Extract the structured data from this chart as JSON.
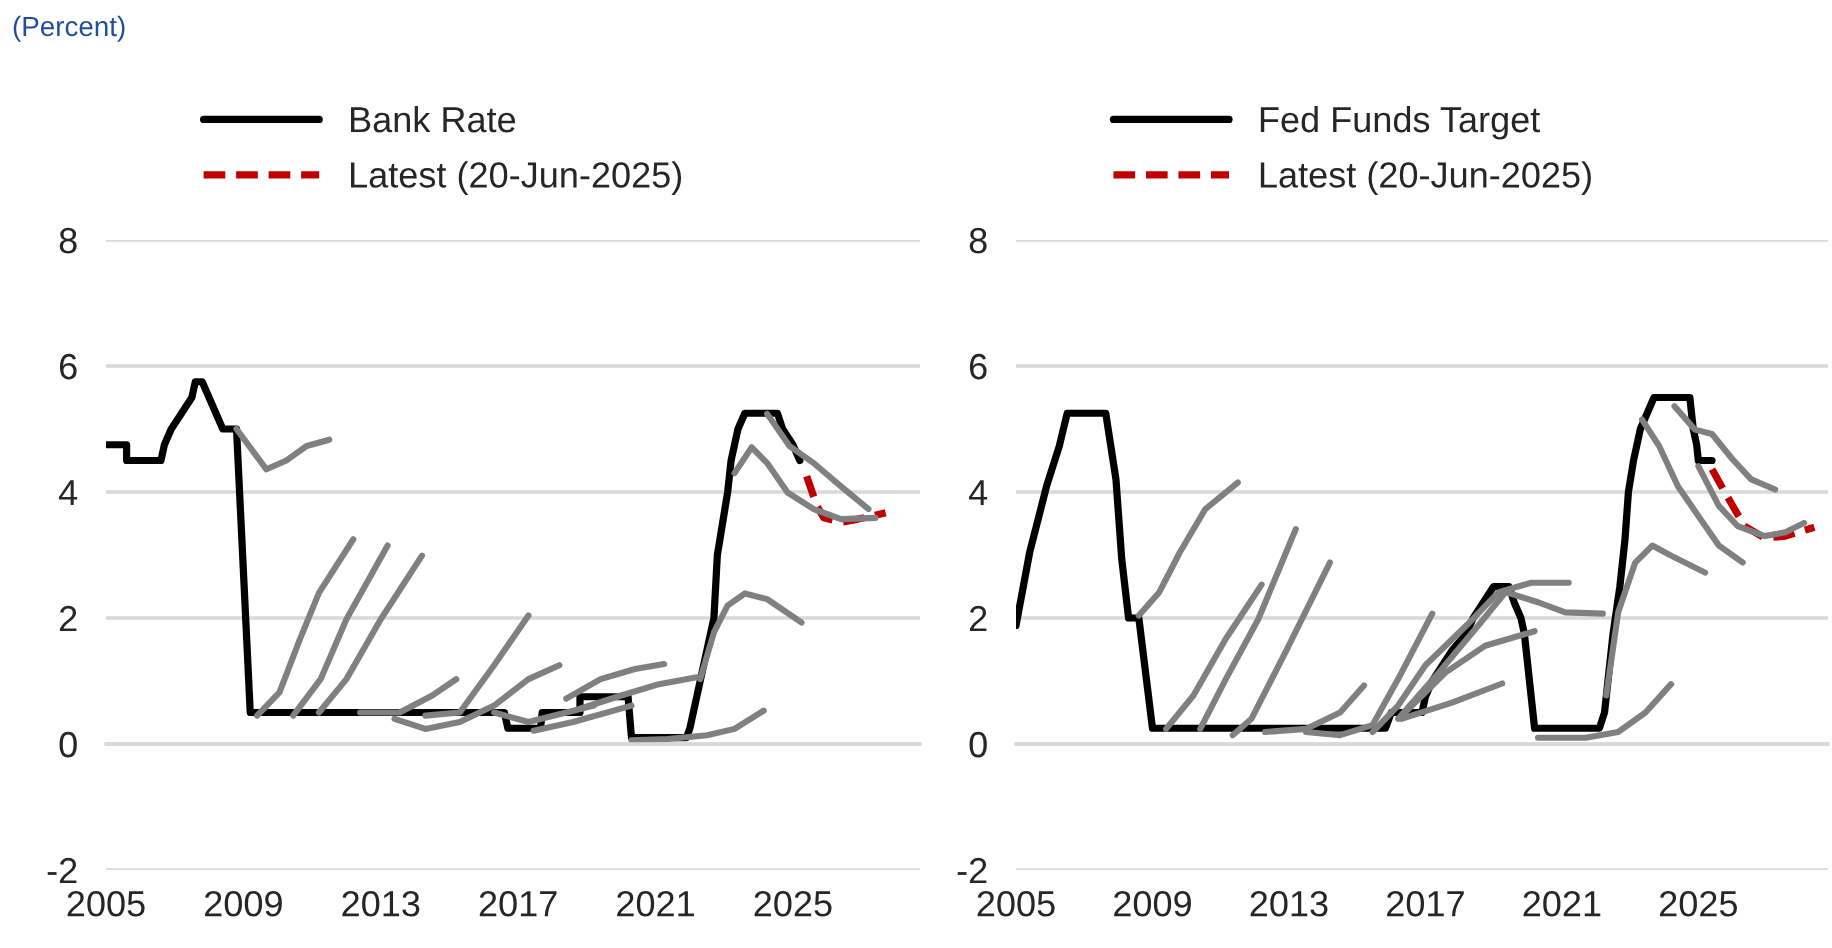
{
  "chart_data": [
    {
      "type": "line",
      "annotations": [
        "(Percent)"
      ],
      "xlim": [
        2005,
        2028.7
      ],
      "xticks": [
        2005,
        2009,
        2013,
        2017,
        2021,
        2025
      ],
      "ylim": [
        -2,
        8
      ],
      "yticks": [
        -2,
        0,
        2,
        4,
        6,
        8
      ],
      "grid": "y",
      "legend": "top",
      "series": [
        {
          "name": "Bank Rate",
          "color": "#000000",
          "line_style": "solid",
          "x": [
            2005.0,
            2005.6,
            2005.6,
            2006.6,
            2006.7,
            2006.9,
            2007.2,
            2007.5,
            2007.6,
            2007.8,
            2008.4,
            2008.8,
            2009.2,
            2016.6,
            2016.7,
            2017.65,
            2017.7,
            2018.8,
            2018.8,
            2020.2,
            2020.3,
            2021.9,
            2022.0,
            2022.3,
            2022.7,
            2022.8,
            2023.1,
            2023.2,
            2023.4,
            2023.6,
            2024.55,
            2024.7,
            2025.0,
            2025.2
          ],
          "values": [
            4.75,
            4.75,
            4.5,
            4.5,
            4.75,
            5.0,
            5.25,
            5.5,
            5.75,
            5.75,
            5.0,
            5.0,
            0.5,
            0.5,
            0.25,
            0.25,
            0.5,
            0.5,
            0.75,
            0.75,
            0.1,
            0.1,
            0.25,
            1.0,
            2.0,
            3.0,
            4.0,
            4.5,
            5.0,
            5.25,
            5.25,
            5.0,
            4.75,
            4.5
          ]
        },
        {
          "name": "Latest (20-Jun-2025)",
          "color": "#c00000",
          "line_style": "dashed",
          "x": [
            2025.4,
            2025.7,
            2025.9,
            2026.4,
            2026.9,
            2027.4,
            2027.7
          ],
          "values": [
            4.25,
            3.78,
            3.59,
            3.52,
            3.57,
            3.63,
            3.67
          ]
        },
        {
          "color": "#808080",
          "line_style": "solid",
          "x": [
            2008.8,
            2009.67,
            2010.25,
            2010.84,
            2011.5
          ],
          "values": [
            5.0,
            4.36,
            4.5,
            4.73,
            4.83
          ]
        },
        {
          "color": "#808080",
          "line_style": "solid",
          "x": [
            2009.4,
            2010.05,
            2010.65,
            2011.2,
            2012.2
          ],
          "values": [
            0.45,
            0.82,
            1.67,
            2.4,
            3.25
          ]
        },
        {
          "color": "#808080",
          "line_style": "solid",
          "x": [
            2010.45,
            2011.25,
            2012.0,
            2013.2
          ],
          "values": [
            0.45,
            1.03,
            1.98,
            3.15
          ]
        },
        {
          "color": "#808080",
          "line_style": "solid",
          "x": [
            2011.2,
            2012.0,
            2013.0,
            2014.2
          ],
          "values": [
            0.5,
            1.03,
            1.98,
            2.99
          ]
        },
        {
          "color": "#808080",
          "line_style": "solid",
          "x": [
            2012.4,
            2013.55,
            2014.5,
            2015.2
          ],
          "values": [
            0.5,
            0.5,
            0.77,
            1.03
          ]
        },
        {
          "color": "#808080",
          "line_style": "solid",
          "x": [
            2013.4,
            2014.3,
            2015.3,
            2016.3,
            2017.3,
            2018.2
          ],
          "values": [
            0.4,
            0.24,
            0.35,
            0.61,
            1.03,
            1.25
          ]
        },
        {
          "color": "#808080",
          "line_style": "solid",
          "x": [
            2014.3,
            2015.3,
            2016.3,
            2017.3
          ],
          "values": [
            0.45,
            0.5,
            1.25,
            2.04
          ]
        },
        {
          "color": "#808080",
          "line_style": "solid",
          "x": [
            2016.3,
            2017.3,
            2018.4,
            2019.2
          ],
          "values": [
            0.5,
            0.35,
            0.5,
            0.61
          ]
        },
        {
          "color": "#808080",
          "line_style": "solid",
          "x": [
            2017.45,
            2018.6,
            2020.3
          ],
          "values": [
            0.21,
            0.35,
            0.61
          ]
        },
        {
          "color": "#808080",
          "line_style": "solid",
          "x": [
            2018.4,
            2019.4,
            2020.4,
            2021.25
          ],
          "values": [
            0.72,
            1.03,
            1.19,
            1.27
          ]
        },
        {
          "color": "#808080",
          "line_style": "solid",
          "x": [
            2018.8,
            2020.0,
            2021.1,
            2022.2
          ],
          "values": [
            0.56,
            0.77,
            0.95,
            1.06
          ]
        },
        {
          "color": "#808080",
          "line_style": "solid",
          "x": [
            2020.3,
            2021.35,
            2022.5,
            2023.3,
            2024.15
          ],
          "values": [
            0.06,
            0.08,
            0.14,
            0.24,
            0.53
          ]
        },
        {
          "color": "#808080",
          "line_style": "solid",
          "x": [
            2022.3,
            2022.7,
            2023.1,
            2023.6,
            2024.25,
            2025.25
          ],
          "values": [
            1.03,
            1.77,
            2.2,
            2.39,
            2.3,
            1.93
          ]
        },
        {
          "color": "#808080",
          "line_style": "solid",
          "x": [
            2023.3,
            2023.8,
            2024.25,
            2024.85,
            2025.6,
            2026.4,
            2027.4
          ],
          "values": [
            4.3,
            4.71,
            4.46,
            3.99,
            3.73,
            3.57,
            3.59
          ]
        },
        {
          "color": "#808080",
          "line_style": "solid",
          "x": [
            2024.25,
            2024.9,
            2025.6,
            2026.4,
            2027.2
          ],
          "values": [
            5.24,
            4.73,
            4.46,
            4.09,
            3.73
          ]
        }
      ]
    },
    {
      "type": "line",
      "xlim": [
        2005,
        2028.8
      ],
      "xticks": [
        2005,
        2009,
        2013,
        2017,
        2021,
        2025
      ],
      "ylim": [
        -2,
        8
      ],
      "yticks": [
        -2,
        0,
        2,
        4,
        6,
        8
      ],
      "grid": "y",
      "legend": "top",
      "series": [
        {
          "name": "Fed Funds Target",
          "color": "#000000",
          "line_style": "solid",
          "x": [
            2005.0,
            2005.4,
            2005.9,
            2006.27,
            2006.5,
            2007.63,
            2007.93,
            2008.1,
            2008.3,
            2008.6,
            2009.0,
            2015.83,
            2016.0,
            2016.9,
            2017.0,
            2017.2,
            2017.5,
            2017.8,
            2018.2,
            2018.4,
            2018.7,
            2019.0,
            2019.45,
            2019.6,
            2019.8,
            2019.9,
            2020.2,
            2022.1,
            2022.25,
            2022.35,
            2022.5,
            2022.7,
            2022.85,
            2022.95,
            2023.1,
            2023.2,
            2023.3,
            2023.5,
            2023.7,
            2024.75,
            2024.85,
            2024.95,
            2025.0,
            2025.4
          ],
          "values": [
            1.88,
            3.04,
            4.1,
            4.73,
            5.25,
            5.25,
            4.2,
            2.93,
            2.0,
            2.0,
            0.25,
            0.25,
            0.5,
            0.5,
            0.75,
            1.0,
            1.25,
            1.5,
            1.75,
            2.0,
            2.25,
            2.5,
            2.5,
            2.25,
            2.0,
            1.75,
            0.25,
            0.25,
            0.5,
            1.0,
            1.75,
            2.5,
            3.25,
            4.0,
            4.5,
            4.75,
            5.0,
            5.25,
            5.5,
            5.5,
            5.0,
            4.75,
            4.5,
            4.5
          ]
        },
        {
          "name": "Latest (20-Jun-2025)",
          "color": "#c00000",
          "line_style": "dashed",
          "x": [
            2025.4,
            2025.9,
            2026.35,
            2026.95,
            2027.55,
            2028.4
          ],
          "values": [
            4.36,
            3.88,
            3.46,
            3.27,
            3.3,
            3.44
          ]
        },
        {
          "color": "#808080",
          "line_style": "solid",
          "x": [
            2008.6,
            2009.2,
            2009.8,
            2010.55,
            2011.5
          ],
          "values": [
            2.04,
            2.41,
            3.04,
            3.73,
            4.15
          ]
        },
        {
          "color": "#808080",
          "line_style": "solid",
          "x": [
            2009.4,
            2010.2,
            2011.15,
            2012.2
          ],
          "values": [
            0.24,
            0.77,
            1.67,
            2.53
          ]
        },
        {
          "color": "#808080",
          "line_style": "solid",
          "x": [
            2010.4,
            2011.15,
            2012.1,
            2013.2
          ],
          "values": [
            0.24,
            1.03,
            1.98,
            3.41
          ]
        },
        {
          "color": "#808080",
          "line_style": "solid",
          "x": [
            2011.35,
            2011.9,
            2012.9,
            2014.2
          ],
          "values": [
            0.14,
            0.4,
            1.46,
            2.88
          ]
        },
        {
          "color": "#808080",
          "line_style": "solid",
          "x": [
            2012.3,
            2013.5,
            2014.5,
            2015.2
          ],
          "values": [
            0.19,
            0.24,
            0.5,
            0.93
          ]
        },
        {
          "color": "#808080",
          "line_style": "solid",
          "x": [
            2013.5,
            2014.5,
            2015.45,
            2016.2,
            2017.2
          ],
          "values": [
            0.19,
            0.14,
            0.3,
            1.03,
            2.07
          ]
        },
        {
          "color": "#808080",
          "line_style": "solid",
          "x": [
            2015.45,
            2016.2,
            2017.0,
            2018.2,
            2019.15,
            2020.1,
            2021.2
          ],
          "values": [
            0.19,
            0.61,
            1.25,
            1.88,
            2.41,
            2.56,
            2.56
          ]
        },
        {
          "color": "#808080",
          "line_style": "solid",
          "x": [
            2016.2,
            2017.4,
            2018.55,
            2019.35,
            2020.3,
            2021.1,
            2022.2
          ],
          "values": [
            0.4,
            1.14,
            1.88,
            2.41,
            2.25,
            2.09,
            2.07
          ]
        },
        {
          "color": "#808080",
          "line_style": "solid",
          "x": [
            2016.4,
            2017.6,
            2018.75,
            2020.2
          ],
          "values": [
            0.5,
            1.14,
            1.56,
            1.79
          ]
        },
        {
          "color": "#808080",
          "line_style": "solid",
          "x": [
            2016.3,
            2017.8,
            2019.25
          ],
          "values": [
            0.4,
            0.66,
            0.96
          ]
        },
        {
          "color": "#808080",
          "line_style": "solid",
          "x": [
            2020.3,
            2021.7,
            2022.65,
            2023.45,
            2024.2
          ],
          "values": [
            0.1,
            0.1,
            0.19,
            0.5,
            0.95
          ]
        },
        {
          "color": "#808080",
          "line_style": "solid",
          "x": [
            2022.3,
            2022.65,
            2023.15,
            2023.65,
            2024.2,
            2025.2
          ],
          "values": [
            0.77,
            2.09,
            2.88,
            3.15,
            2.99,
            2.72
          ]
        },
        {
          "color": "#808080",
          "line_style": "solid",
          "x": [
            2023.35,
            2023.85,
            2024.4,
            2025.0,
            2025.6,
            2026.3
          ],
          "values": [
            5.15,
            4.73,
            4.09,
            3.62,
            3.15,
            2.88
          ]
        },
        {
          "color": "#808080",
          "line_style": "solid",
          "x": [
            2024.3,
            2024.9,
            2025.4,
            2026.0,
            2026.55,
            2027.25
          ],
          "values": [
            5.36,
            4.99,
            4.92,
            4.52,
            4.2,
            4.04
          ]
        },
        {
          "color": "#808080",
          "line_style": "solid",
          "x": [
            2025.0,
            2025.6,
            2026.15,
            2026.95,
            2027.55,
            2028.1
          ],
          "values": [
            4.41,
            3.78,
            3.46,
            3.3,
            3.36,
            3.51
          ]
        }
      ]
    }
  ]
}
